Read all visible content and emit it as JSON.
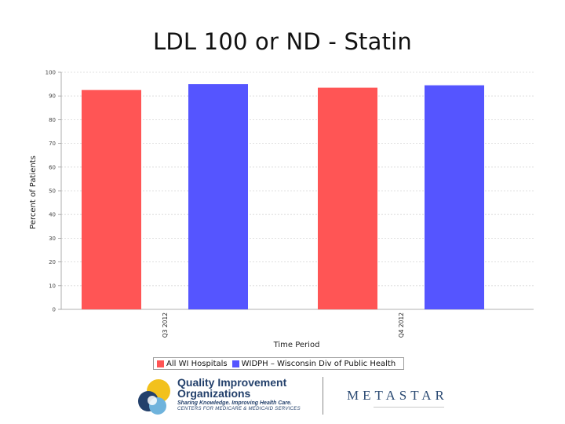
{
  "slide_title": "LDL 100 or ND - Statin",
  "colors": {
    "series_1": "#ff5555",
    "series_2": "#5555ff",
    "grid": "#d6d6d6"
  },
  "chart_data": {
    "type": "bar",
    "title": "LDL 100 or ND - Statin",
    "xlabel": "Time Period",
    "ylabel": "Percent of Patients",
    "ylim": [
      0,
      100
    ],
    "yticks": [
      0,
      10,
      20,
      30,
      40,
      50,
      60,
      70,
      80,
      90,
      100
    ],
    "grid": true,
    "legend_position": "bottom",
    "categories": [
      "Q3 2012",
      "Q4 2012"
    ],
    "series": [
      {
        "name": "All WI Hospitals",
        "color": "#ff5555",
        "values": [
          92.5,
          93.5
        ]
      },
      {
        "name": "WIDPH – Wisconsin Div of Public Health",
        "color": "#5555ff",
        "values": [
          95,
          94.5
        ]
      }
    ]
  },
  "footer": {
    "qio_name_line1": "Quality Improvement",
    "qio_name_line2": "Organizations",
    "qio_tagline": "Sharing Knowledge. Improving Health Care.",
    "qio_cms": "CENTERS FOR MEDICARE & MEDICAID SERVICES",
    "partner_logo": "METASTAR"
  }
}
